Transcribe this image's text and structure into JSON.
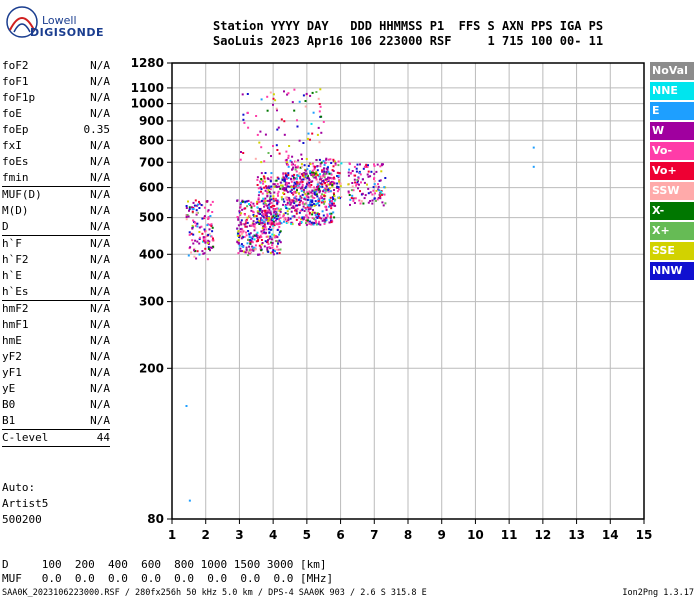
{
  "logo": {
    "line1": "Lowell",
    "line2": "DIGISONDE"
  },
  "header": {
    "line1": "Station YYYY DAY   DDD HHMMSS P1  FFS S AXN PPS IGA PS",
    "line2": "SaoLuis 2023 Apr16 106 223000 RSF     1 715 100 00- 11"
  },
  "params": [
    {
      "name": "foF2",
      "value": "N/A"
    },
    {
      "name": "foF1",
      "value": "N/A"
    },
    {
      "name": "foF1p",
      "value": "N/A"
    },
    {
      "name": "foE",
      "value": "N/A"
    },
    {
      "name": "foEp",
      "value": "0.35"
    },
    {
      "name": "fxI",
      "value": "N/A"
    },
    {
      "name": "foEs",
      "value": "N/A"
    },
    {
      "name": "fmin",
      "value": "N/A"
    },
    {
      "name": "MUF(D)",
      "value": "N/A"
    },
    {
      "name": "M(D)",
      "value": "N/A"
    },
    {
      "name": "D",
      "value": "N/A"
    },
    {
      "name": "h`F",
      "value": "N/A"
    },
    {
      "name": "h`F2",
      "value": "N/A"
    },
    {
      "name": "h`E",
      "value": "N/A"
    },
    {
      "name": "h`Es",
      "value": "N/A"
    },
    {
      "name": "hmF2",
      "value": "N/A"
    },
    {
      "name": "hmF1",
      "value": "N/A"
    },
    {
      "name": "hmE",
      "value": "N/A"
    },
    {
      "name": "yF2",
      "value": "N/A"
    },
    {
      "name": "yF1",
      "value": "N/A"
    },
    {
      "name": "yE",
      "value": "N/A"
    },
    {
      "name": "B0",
      "value": "N/A"
    },
    {
      "name": "B1",
      "value": "N/A"
    },
    {
      "name": "C-level",
      "value": "44"
    }
  ],
  "auto": {
    "line1": "Auto:",
    "line2": "Artist5",
    "line3": "500200"
  },
  "legend": [
    {
      "label": "NoVal",
      "color": "#8c8c8c"
    },
    {
      "label": "NNE",
      "color": "#00e5ee"
    },
    {
      "label": "E",
      "color": "#1e9fff"
    },
    {
      "label": "W",
      "color": "#a0009f"
    },
    {
      "label": "Vo-",
      "color": "#ff3ca8"
    },
    {
      "label": "Vo+",
      "color": "#ee0033"
    },
    {
      "label": "SSW",
      "color": "#ffaaaa"
    },
    {
      "label": "X-",
      "color": "#007700"
    },
    {
      "label": "X+",
      "color": "#66bb55"
    },
    {
      "label": "SSE",
      "color": "#d2d200"
    },
    {
      "label": "NNW",
      "color": "#1010d0"
    }
  ],
  "bottom": {
    "dline": "D     100  200  400  600  800 1000 1500 3000 [km]",
    "mufline": "MUF   0.0  0.0  0.0  0.0  0.0  0.0  0.0  0.0 [MHz]"
  },
  "footer": {
    "left": "SAA0K_2023106223000.RSF / 280fx256h 50 kHz 5.0 km / DPS-4 SAA0K 903 / 2.6 S 315.8 E",
    "right": "Ion2Png 1.3.17"
  },
  "chart_data": {
    "type": "scatter",
    "xlim": [
      1,
      15
    ],
    "ylim": [
      80,
      1280
    ],
    "y_scale": "log",
    "x_ticks": [
      1,
      2,
      3,
      4,
      5,
      6,
      7,
      8,
      9,
      10,
      11,
      12,
      13,
      14,
      15
    ],
    "y_ticks": [
      80,
      200,
      300,
      400,
      500,
      600,
      700,
      800,
      900,
      1000,
      1100,
      1280
    ],
    "grid": true,
    "clusters": [
      {
        "x_range": [
          1.4,
          2.2
        ],
        "y_range": [
          390,
          560
        ],
        "density": 0.5
      },
      {
        "x_range": [
          2.9,
          4.2
        ],
        "y_range": [
          400,
          560
        ],
        "density": 0.9
      },
      {
        "x_range": [
          3.5,
          5.8
        ],
        "y_range": [
          480,
          660
        ],
        "density": 0.85
      },
      {
        "x_range": [
          4.3,
          6.0
        ],
        "y_range": [
          540,
          720
        ],
        "density": 0.6
      },
      {
        "x_range": [
          6.2,
          7.3
        ],
        "y_range": [
          540,
          700
        ],
        "density": 0.5
      },
      {
        "x_range": [
          3.0,
          5.5
        ],
        "y_range": [
          700,
          1100
        ],
        "density": 0.08
      }
    ],
    "outliers": [
      {
        "x": 11.7,
        "y": 770
      },
      {
        "x": 11.7,
        "y": 685
      },
      {
        "x": 1.4,
        "y": 160
      },
      {
        "x": 1.5,
        "y": 90
      }
    ]
  }
}
